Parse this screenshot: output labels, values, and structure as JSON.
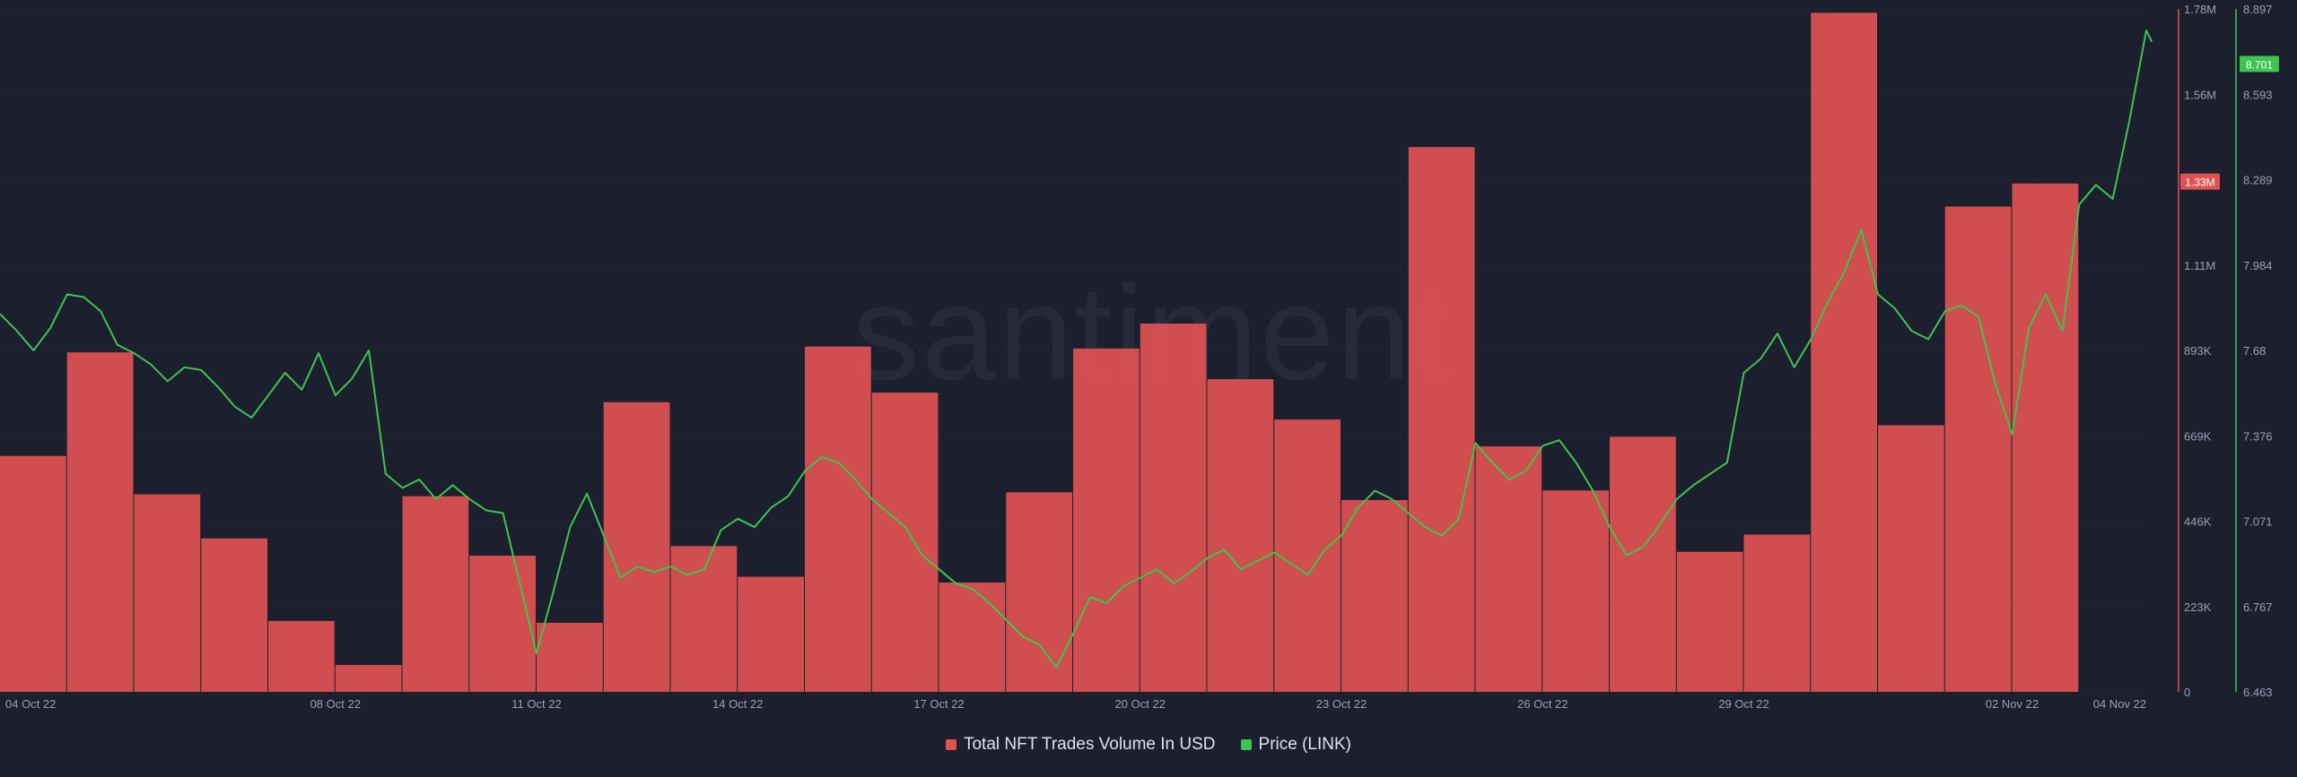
{
  "watermark": "santiment",
  "chart_data": {
    "type": "bar+line",
    "x_ticks": [
      "04 Oct 22",
      "08 Oct 22",
      "11 Oct 22",
      "14 Oct 22",
      "17 Oct 22",
      "20 Oct 22",
      "23 Oct 22",
      "26 Oct 22",
      "29 Oct 22",
      "02 Nov 22",
      "04 Nov 22"
    ],
    "left_axis": {
      "ticks": [
        "0",
        "223K",
        "446K",
        "669K",
        "893K",
        "1.11M",
        "1.33M",
        "1.56M",
        "1.78M"
      ],
      "range": [
        0,
        1780000
      ],
      "current_label": "1.33M",
      "current_value": 1330000,
      "color": "#e05252"
    },
    "right_axis": {
      "ticks": [
        "6.463",
        "6.767",
        "7.071",
        "7.376",
        "7.68",
        "7.984",
        "8.289",
        "8.593",
        "8.897"
      ],
      "range": [
        6.463,
        8.897
      ],
      "current_label": "8.701",
      "current_value": 8.701,
      "color": "#3ec450"
    },
    "series": [
      {
        "name": "Total NFT Trades Volume In USD",
        "kind": "bar",
        "color": "#e05252",
        "dates": [
          "2022-10-03",
          "2022-10-04",
          "2022-10-05",
          "2022-10-06",
          "2022-10-07",
          "2022-10-08",
          "2022-10-09",
          "2022-10-10",
          "2022-10-11",
          "2022-10-12",
          "2022-10-13",
          "2022-10-14",
          "2022-10-15",
          "2022-10-16",
          "2022-10-17",
          "2022-10-18",
          "2022-10-19",
          "2022-10-20",
          "2022-10-21",
          "2022-10-22",
          "2022-10-23",
          "2022-10-24",
          "2022-10-25",
          "2022-10-26",
          "2022-10-27",
          "2022-10-28",
          "2022-10-29",
          "2022-10-30",
          "2022-10-31",
          "2022-11-01",
          "2022-11-02",
          "2022-11-03"
        ],
        "values": [
          615000,
          885000,
          515000,
          400000,
          185000,
          70000,
          510000,
          355000,
          180000,
          755000,
          380000,
          300000,
          900000,
          780000,
          285000,
          520000,
          895000,
          960000,
          815000,
          710000,
          500000,
          1420000,
          640000,
          525000,
          665000,
          365000,
          410000,
          1770000,
          695000,
          1265000,
          1325000,
          0
        ]
      },
      {
        "name": "Price (LINK)",
        "kind": "line",
        "color": "#3ec450",
        "points": [
          [
            "2022-10-03T00:00",
            7.81
          ],
          [
            "2022-10-03T06:00",
            7.75
          ],
          [
            "2022-10-03T12:00",
            7.68
          ],
          [
            "2022-10-03T18:00",
            7.76
          ],
          [
            "2022-10-04T00:00",
            7.88
          ],
          [
            "2022-10-04T06:00",
            7.87
          ],
          [
            "2022-10-04T12:00",
            7.82
          ],
          [
            "2022-10-04T18:00",
            7.7
          ],
          [
            "2022-10-05T00:00",
            7.67
          ],
          [
            "2022-10-05T06:00",
            7.63
          ],
          [
            "2022-10-05T12:00",
            7.57
          ],
          [
            "2022-10-05T18:00",
            7.62
          ],
          [
            "2022-10-06T00:00",
            7.61
          ],
          [
            "2022-10-06T06:00",
            7.55
          ],
          [
            "2022-10-06T12:00",
            7.48
          ],
          [
            "2022-10-06T18:00",
            7.44
          ],
          [
            "2022-10-07T00:00",
            7.52
          ],
          [
            "2022-10-07T06:00",
            7.6
          ],
          [
            "2022-10-07T12:00",
            7.54
          ],
          [
            "2022-10-07T18:00",
            7.67
          ],
          [
            "2022-10-08T00:00",
            7.52
          ],
          [
            "2022-10-08T06:00",
            7.58
          ],
          [
            "2022-10-08T12:00",
            7.68
          ],
          [
            "2022-10-08T18:00",
            7.24
          ],
          [
            "2022-10-09T00:00",
            7.19
          ],
          [
            "2022-10-09T06:00",
            7.22
          ],
          [
            "2022-10-09T12:00",
            7.15
          ],
          [
            "2022-10-09T18:00",
            7.2
          ],
          [
            "2022-10-10T00:00",
            7.15
          ],
          [
            "2022-10-10T06:00",
            7.11
          ],
          [
            "2022-10-10T12:00",
            7.1
          ],
          [
            "2022-10-10T18:00",
            6.85
          ],
          [
            "2022-10-11T00:00",
            6.6
          ],
          [
            "2022-10-11T06:00",
            6.82
          ],
          [
            "2022-10-11T12:00",
            7.05
          ],
          [
            "2022-10-11T18:00",
            7.17
          ],
          [
            "2022-10-12T00:00",
            7.02
          ],
          [
            "2022-10-12T06:00",
            6.87
          ],
          [
            "2022-10-12T12:00",
            6.91
          ],
          [
            "2022-10-12T18:00",
            6.89
          ],
          [
            "2022-10-13T00:00",
            6.91
          ],
          [
            "2022-10-13T06:00",
            6.88
          ],
          [
            "2022-10-13T12:00",
            6.9
          ],
          [
            "2022-10-13T18:00",
            7.04
          ],
          [
            "2022-10-14T00:00",
            7.08
          ],
          [
            "2022-10-14T06:00",
            7.05
          ],
          [
            "2022-10-14T12:00",
            7.12
          ],
          [
            "2022-10-14T18:00",
            7.16
          ],
          [
            "2022-10-15T00:00",
            7.25
          ],
          [
            "2022-10-15T06:00",
            7.3
          ],
          [
            "2022-10-15T12:00",
            7.28
          ],
          [
            "2022-10-15T18:00",
            7.22
          ],
          [
            "2022-10-16T00:00",
            7.15
          ],
          [
            "2022-10-16T06:00",
            7.1
          ],
          [
            "2022-10-16T12:00",
            7.05
          ],
          [
            "2022-10-16T18:00",
            6.95
          ],
          [
            "2022-10-17T00:00",
            6.9
          ],
          [
            "2022-10-17T06:00",
            6.85
          ],
          [
            "2022-10-17T12:00",
            6.83
          ],
          [
            "2022-10-17T18:00",
            6.78
          ],
          [
            "2022-10-18T00:00",
            6.72
          ],
          [
            "2022-10-18T06:00",
            6.66
          ],
          [
            "2022-10-18T12:00",
            6.63
          ],
          [
            "2022-10-18T18:00",
            6.55
          ],
          [
            "2022-10-19T00:00",
            6.67
          ],
          [
            "2022-10-19T06:00",
            6.8
          ],
          [
            "2022-10-19T12:00",
            6.78
          ],
          [
            "2022-10-19T18:00",
            6.84
          ],
          [
            "2022-10-20T00:00",
            6.87
          ],
          [
            "2022-10-20T06:00",
            6.9
          ],
          [
            "2022-10-20T12:00",
            6.85
          ],
          [
            "2022-10-20T18:00",
            6.89
          ],
          [
            "2022-10-21T00:00",
            6.94
          ],
          [
            "2022-10-21T06:00",
            6.97
          ],
          [
            "2022-10-21T12:00",
            6.9
          ],
          [
            "2022-10-21T18:00",
            6.93
          ],
          [
            "2022-10-22T00:00",
            6.96
          ],
          [
            "2022-10-22T06:00",
            6.92
          ],
          [
            "2022-10-22T12:00",
            6.88
          ],
          [
            "2022-10-22T18:00",
            6.97
          ],
          [
            "2022-10-23T00:00",
            7.02
          ],
          [
            "2022-10-23T06:00",
            7.12
          ],
          [
            "2022-10-23T12:00",
            7.18
          ],
          [
            "2022-10-23T18:00",
            7.15
          ],
          [
            "2022-10-24T00:00",
            7.1
          ],
          [
            "2022-10-24T06:00",
            7.05
          ],
          [
            "2022-10-24T12:00",
            7.02
          ],
          [
            "2022-10-24T18:00",
            7.08
          ],
          [
            "2022-10-25T00:00",
            7.35
          ],
          [
            "2022-10-25T06:00",
            7.28
          ],
          [
            "2022-10-25T12:00",
            7.22
          ],
          [
            "2022-10-25T18:00",
            7.25
          ],
          [
            "2022-10-26T00:00",
            7.34
          ],
          [
            "2022-10-26T06:00",
            7.36
          ],
          [
            "2022-10-26T12:00",
            7.28
          ],
          [
            "2022-10-26T18:00",
            7.18
          ],
          [
            "2022-10-27T00:00",
            7.05
          ],
          [
            "2022-10-27T06:00",
            6.95
          ],
          [
            "2022-10-27T12:00",
            6.98
          ],
          [
            "2022-10-27T18:00",
            7.06
          ],
          [
            "2022-10-28T00:00",
            7.15
          ],
          [
            "2022-10-28T06:00",
            7.2
          ],
          [
            "2022-10-28T12:00",
            7.24
          ],
          [
            "2022-10-28T18:00",
            7.28
          ],
          [
            "2022-10-29T00:00",
            7.6
          ],
          [
            "2022-10-29T06:00",
            7.65
          ],
          [
            "2022-10-29T12:00",
            7.74
          ],
          [
            "2022-10-29T18:00",
            7.62
          ],
          [
            "2022-10-30T00:00",
            7.72
          ],
          [
            "2022-10-30T06:00",
            7.85
          ],
          [
            "2022-10-30T12:00",
            7.96
          ],
          [
            "2022-10-30T18:00",
            8.11
          ],
          [
            "2022-10-31T00:00",
            7.88
          ],
          [
            "2022-10-31T06:00",
            7.83
          ],
          [
            "2022-10-31T12:00",
            7.75
          ],
          [
            "2022-10-31T18:00",
            7.72
          ],
          [
            "2022-11-01T00:00",
            7.82
          ],
          [
            "2022-11-01T06:00",
            7.84
          ],
          [
            "2022-11-01T12:00",
            7.8
          ],
          [
            "2022-11-01T18:00",
            7.56
          ],
          [
            "2022-11-02T00:00",
            7.38
          ],
          [
            "2022-11-02T06:00",
            7.76
          ],
          [
            "2022-11-02T12:00",
            7.88
          ],
          [
            "2022-11-02T18:00",
            7.75
          ],
          [
            "2022-11-03T00:00",
            8.2
          ],
          [
            "2022-11-03T06:00",
            8.27
          ],
          [
            "2022-11-03T12:00",
            8.22
          ],
          [
            "2022-11-03T18:00",
            8.5
          ],
          [
            "2022-11-04T00:00",
            8.82
          ],
          [
            "2022-11-04T02:00",
            8.78
          ]
        ]
      }
    ],
    "x_domain": [
      "2022-10-03T00:00",
      "2022-11-04T00:00"
    ],
    "grid": true,
    "legend_position": "bottom-center"
  }
}
